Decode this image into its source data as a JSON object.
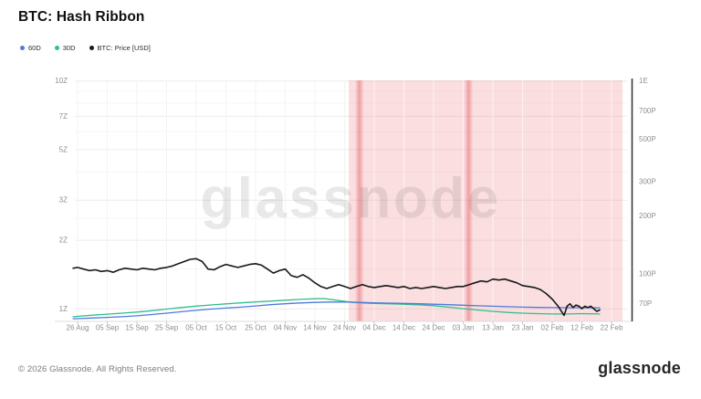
{
  "header": {
    "title": "BTC: Hash Ribbon"
  },
  "legend": [
    {
      "label": "60D",
      "color": "#4f7ad9"
    },
    {
      "label": "30D",
      "color": "#2fbf8e"
    },
    {
      "label": "BTC: Price [USD]",
      "color": "#17181b"
    }
  ],
  "watermark": "glassnode",
  "footer": {
    "copyright": "© 2026 Glassnode. All Rights Reserved.",
    "brand": "glassnode"
  },
  "chart_data": {
    "type": "line",
    "title": "BTC: Hash Ribbon",
    "legend_position": "top-left",
    "grid": true,
    "x_axis": {
      "tick_labels": [
        "26 Aug",
        "05 Sep",
        "15 Sep",
        "25 Sep",
        "05 Oct",
        "15 Oct",
        "25 Oct",
        "04 Nov",
        "14 Nov",
        "24 Nov",
        "04 Dec",
        "14 Dec",
        "24 Dec",
        "03 Jan",
        "13 Jan",
        "23 Jan",
        "02 Feb",
        "12 Feb",
        "22 Feb"
      ],
      "tick_days": [
        0,
        10,
        20,
        30,
        40,
        50,
        60,
        70,
        80,
        90,
        100,
        110,
        120,
        130,
        140,
        150,
        160,
        170,
        180
      ]
    },
    "left_axis": {
      "unit": "Z (hashrate)",
      "scale": "log",
      "ticks": [
        {
          "label": "10Z",
          "value": 10
        },
        {
          "label": "7Z",
          "value": 7
        },
        {
          "label": "5Z",
          "value": 5
        },
        {
          "label": "3Z",
          "value": 3
        },
        {
          "label": "2Z",
          "value": 2
        },
        {
          "label": "1Z",
          "value": 1
        }
      ],
      "minor_gridline_values": [
        9,
        8,
        6,
        4,
        2.5,
        1.5
      ]
    },
    "right_axis": {
      "unit": "BTC Price [USD]",
      "scale": "log",
      "ticks": [
        {
          "label": "1E",
          "value": 1000
        },
        {
          "label": "700P",
          "value": 700
        },
        {
          "label": "500P",
          "value": 500
        },
        {
          "label": "300P",
          "value": 300
        },
        {
          "label": "200P",
          "value": 200
        },
        {
          "label": "100P",
          "value": 100
        },
        {
          "label": "70P",
          "value": 70
        }
      ]
    },
    "capitulation_zone": {
      "start_day": 91.4,
      "end_day": 183.7,
      "fill": "rgba(236,110,115,0.22)"
    },
    "capitulation_bands": [
      {
        "day": 95
      },
      {
        "day": 131.8
      }
    ],
    "band_color": "rgba(224,70,76,0.42)",
    "series": [
      {
        "name": "60D",
        "color": "#4f7ad9",
        "axis": "left",
        "points": [
          [
            -1.5,
            0.905
          ],
          [
            5,
            0.912
          ],
          [
            10,
            0.918
          ],
          [
            15,
            0.924
          ],
          [
            20,
            0.932
          ],
          [
            25,
            0.944
          ],
          [
            30,
            0.958
          ],
          [
            35,
            0.972
          ],
          [
            40,
            0.985
          ],
          [
            45,
            0.998
          ],
          [
            50,
            1.008
          ],
          [
            55,
            1.018
          ],
          [
            60,
            1.03
          ],
          [
            65,
            1.043
          ],
          [
            70,
            1.053
          ],
          [
            75,
            1.062
          ],
          [
            80,
            1.068
          ],
          [
            85,
            1.072
          ],
          [
            90,
            1.072
          ],
          [
            95,
            1.068
          ],
          [
            100,
            1.064
          ],
          [
            105,
            1.06
          ],
          [
            110,
            1.057
          ],
          [
            115,
            1.053
          ],
          [
            120,
            1.048
          ],
          [
            125,
            1.043
          ],
          [
            130,
            1.038
          ],
          [
            135,
            1.032
          ],
          [
            140,
            1.027
          ],
          [
            145,
            1.022
          ],
          [
            150,
            1.018
          ],
          [
            155,
            1.015
          ],
          [
            160,
            1.013
          ],
          [
            165,
            1.012
          ],
          [
            170,
            1.012
          ],
          [
            176,
            1.01
          ]
        ]
      },
      {
        "name": "30D",
        "color": "#2fbf8e",
        "axis": "left",
        "points": [
          [
            -1.5,
            0.924
          ],
          [
            5,
            0.938
          ],
          [
            10,
            0.948
          ],
          [
            15,
            0.958
          ],
          [
            20,
            0.968
          ],
          [
            25,
            0.982
          ],
          [
            30,
            0.998
          ],
          [
            35,
            1.014
          ],
          [
            40,
            1.028
          ],
          [
            45,
            1.04
          ],
          [
            50,
            1.052
          ],
          [
            55,
            1.063
          ],
          [
            60,
            1.073
          ],
          [
            65,
            1.082
          ],
          [
            70,
            1.092
          ],
          [
            75,
            1.101
          ],
          [
            80,
            1.108
          ],
          [
            83,
            1.11
          ],
          [
            86,
            1.098
          ],
          [
            90,
            1.08
          ],
          [
            93,
            1.068
          ],
          [
            96,
            1.061
          ],
          [
            100,
            1.057
          ],
          [
            105,
            1.053
          ],
          [
            110,
            1.048
          ],
          [
            115,
            1.042
          ],
          [
            120,
            1.033
          ],
          [
            125,
            1.018
          ],
          [
            130,
            1.002
          ],
          [
            135,
            0.988
          ],
          [
            140,
            0.975
          ],
          [
            145,
            0.965
          ],
          [
            150,
            0.958
          ],
          [
            155,
            0.953
          ],
          [
            160,
            0.95
          ],
          [
            165,
            0.95
          ],
          [
            170,
            0.953
          ],
          [
            176,
            0.95
          ]
        ]
      },
      {
        "name": "BTC: Price [USD]",
        "color": "#17181b",
        "axis": "right",
        "points": [
          [
            -1.5,
            107
          ],
          [
            0,
            108
          ],
          [
            2,
            106
          ],
          [
            4,
            104
          ],
          [
            6,
            105
          ],
          [
            8,
            103
          ],
          [
            10,
            104
          ],
          [
            12,
            102
          ],
          [
            14,
            105
          ],
          [
            16,
            107
          ],
          [
            18,
            106
          ],
          [
            20,
            105
          ],
          [
            22,
            107
          ],
          [
            24,
            106
          ],
          [
            26,
            105
          ],
          [
            28,
            107
          ],
          [
            30,
            108
          ],
          [
            32,
            110
          ],
          [
            34,
            113
          ],
          [
            36,
            116
          ],
          [
            38,
            119
          ],
          [
            40,
            120
          ],
          [
            42,
            116
          ],
          [
            44,
            106
          ],
          [
            46,
            105
          ],
          [
            48,
            109
          ],
          [
            50,
            112
          ],
          [
            52,
            110
          ],
          [
            54,
            108
          ],
          [
            56,
            110
          ],
          [
            58,
            112
          ],
          [
            60,
            113
          ],
          [
            62,
            111
          ],
          [
            64,
            106
          ],
          [
            66,
            101
          ],
          [
            68,
            104
          ],
          [
            70,
            106
          ],
          [
            72,
            98
          ],
          [
            74,
            96
          ],
          [
            76,
            99
          ],
          [
            78,
            95
          ],
          [
            80,
            90
          ],
          [
            82,
            86
          ],
          [
            84,
            84
          ],
          [
            86,
            86
          ],
          [
            88,
            88
          ],
          [
            90,
            86
          ],
          [
            92,
            84
          ],
          [
            94,
            86
          ],
          [
            96,
            88
          ],
          [
            98,
            86
          ],
          [
            100,
            85
          ],
          [
            102,
            86
          ],
          [
            104,
            87
          ],
          [
            106,
            86
          ],
          [
            108,
            85
          ],
          [
            110,
            86
          ],
          [
            112,
            84
          ],
          [
            114,
            85
          ],
          [
            116,
            84
          ],
          [
            118,
            85
          ],
          [
            120,
            86
          ],
          [
            122,
            85
          ],
          [
            124,
            84
          ],
          [
            126,
            85
          ],
          [
            128,
            86
          ],
          [
            130,
            86
          ],
          [
            132,
            88
          ],
          [
            134,
            90
          ],
          [
            136,
            92
          ],
          [
            138,
            91
          ],
          [
            140,
            94
          ],
          [
            142,
            93
          ],
          [
            144,
            94
          ],
          [
            146,
            92
          ],
          [
            148,
            90
          ],
          [
            150,
            87
          ],
          [
            152,
            86
          ],
          [
            154,
            85
          ],
          [
            156,
            83
          ],
          [
            158,
            79
          ],
          [
            160,
            74
          ],
          [
            162,
            68
          ],
          [
            164,
            61
          ],
          [
            165,
            68
          ],
          [
            166,
            70
          ],
          [
            167,
            67
          ],
          [
            168,
            69
          ],
          [
            169,
            68
          ],
          [
            170,
            66
          ],
          [
            171,
            68
          ],
          [
            172,
            67
          ],
          [
            173,
            68
          ],
          [
            174,
            66
          ],
          [
            175,
            64
          ],
          [
            176,
            65
          ]
        ]
      }
    ]
  }
}
